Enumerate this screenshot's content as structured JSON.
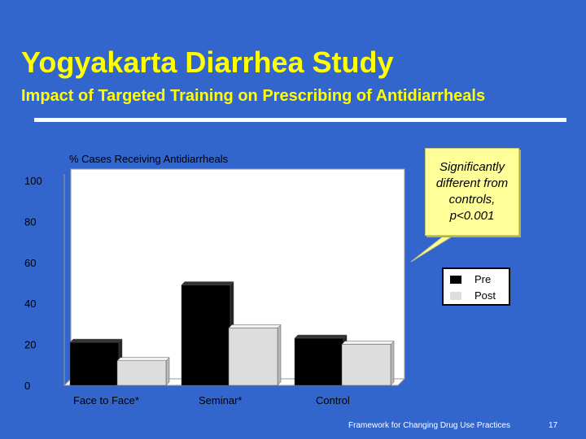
{
  "slide": {
    "title": "Yogyakarta Diarrhea Study",
    "subtitle": "Impact of Targeted Training on Prescribing of Antidiarrheals",
    "callout": "Significantly different from controls, p<0.001",
    "footer": "Framework for Changing Drug Use Practices",
    "page_number": "17"
  },
  "colors": {
    "background": "#3366cc",
    "title": "#ffff00",
    "pre": "#000000",
    "post": "#dddddd",
    "plot_area": "#ffffff",
    "callout": "#ffff99"
  },
  "chart_data": {
    "type": "bar",
    "title": "% Cases Receiving Antidiarrheals",
    "categories": [
      "Face to Face*",
      "Seminar*",
      "Control"
    ],
    "series": [
      {
        "name": "Pre",
        "values": [
          21,
          49,
          23
        ]
      },
      {
        "name": "Post",
        "values": [
          12,
          28,
          20
        ]
      }
    ],
    "ylim": [
      0,
      100
    ],
    "yticks": [
      "0",
      "20",
      "40",
      "60",
      "80",
      "100"
    ],
    "legend_position": "right",
    "grid": false,
    "three_d": true
  }
}
